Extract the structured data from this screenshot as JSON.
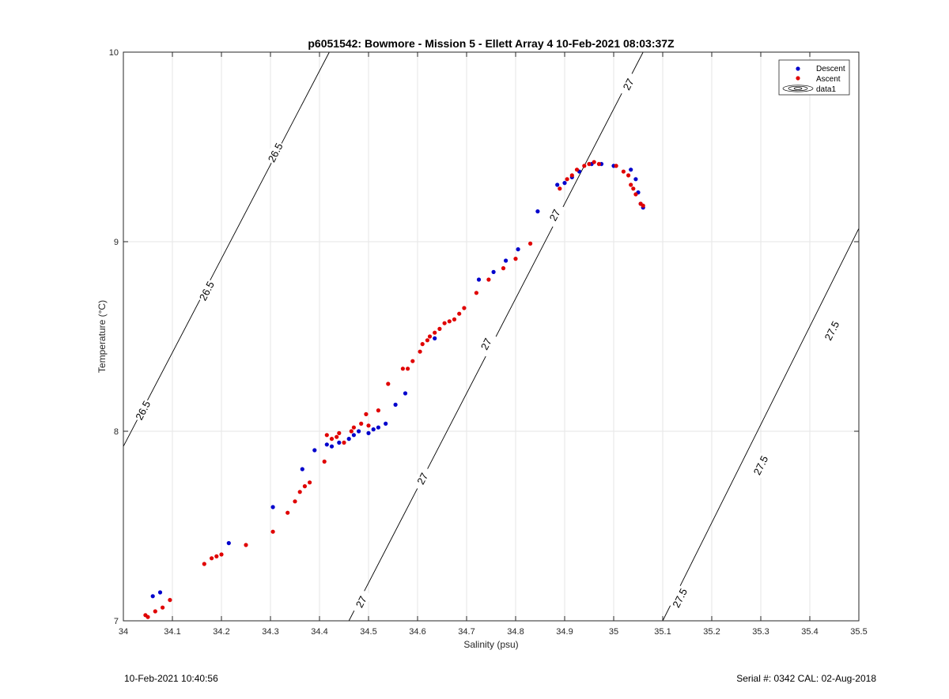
{
  "footer": {
    "timestamp": "10-Feb-2021 10:40:56",
    "serial": "Serial #: 0342  CAL: 02-Aug-2018"
  },
  "chart_data": {
    "type": "scatter",
    "title": "p6051542: Bowmore - Mission 5 - Ellett Array 4 10-Feb-2021 08:03:37Z",
    "xlabel": "Salinity (psu)",
    "ylabel": "Temperature (°C)",
    "xlim": [
      34,
      35.5
    ],
    "ylim": [
      7,
      10
    ],
    "xticks": [
      "34",
      "34.1",
      "34.2",
      "34.3",
      "34.4",
      "34.5",
      "34.6",
      "34.7",
      "34.8",
      "34.9",
      "35",
      "35.1",
      "35.2",
      "35.3",
      "35.4",
      "35.5"
    ],
    "yticks": [
      "7",
      "8",
      "9",
      "10"
    ],
    "grid": true,
    "legend_position": "top-right",
    "legend": [
      "Descent",
      "Ascent",
      "data1"
    ],
    "colors": {
      "Descent": "#0000cc",
      "Ascent": "#e00000",
      "contour": "#000000",
      "grid": "#e6e6e6"
    },
    "contours": [
      {
        "level": "26.5",
        "points": [
          [
            34.0,
            7.92
          ],
          [
            34.42,
            10.0
          ]
        ],
        "labels": [
          [
            34.04,
            8.11
          ],
          [
            34.17,
            8.74
          ],
          [
            34.31,
            9.47
          ]
        ]
      },
      {
        "level": "27",
        "points": [
          [
            34.46,
            7.0
          ],
          [
            35.06,
            10.0
          ]
        ],
        "labels": [
          [
            34.485,
            7.1
          ],
          [
            34.61,
            7.75
          ],
          [
            34.74,
            8.46
          ],
          [
            34.88,
            9.14
          ],
          [
            35.03,
            9.83
          ]
        ]
      },
      {
        "level": "27.5",
        "points": [
          [
            35.1,
            7.0
          ],
          [
            35.5,
            9.07
          ]
        ],
        "labels": [
          [
            35.135,
            7.12
          ],
          [
            35.3,
            7.82
          ],
          [
            35.445,
            8.53
          ]
        ]
      }
    ],
    "series": [
      {
        "name": "Descent",
        "points": [
          [
            34.06,
            7.13
          ],
          [
            34.075,
            7.15
          ],
          [
            34.215,
            7.41
          ],
          [
            34.305,
            7.6
          ],
          [
            34.365,
            7.8
          ],
          [
            34.39,
            7.9
          ],
          [
            34.415,
            7.93
          ],
          [
            34.425,
            7.92
          ],
          [
            34.44,
            7.94
          ],
          [
            34.46,
            7.96
          ],
          [
            34.47,
            7.98
          ],
          [
            34.48,
            8.0
          ],
          [
            34.5,
            7.99
          ],
          [
            34.51,
            8.01
          ],
          [
            34.52,
            8.02
          ],
          [
            34.535,
            8.04
          ],
          [
            34.555,
            8.14
          ],
          [
            34.575,
            8.2
          ],
          [
            34.635,
            8.49
          ],
          [
            34.725,
            8.8
          ],
          [
            34.755,
            8.84
          ],
          [
            34.78,
            8.9
          ],
          [
            34.805,
            8.96
          ],
          [
            34.845,
            9.16
          ],
          [
            34.885,
            9.3
          ],
          [
            34.9,
            9.31
          ],
          [
            34.915,
            9.34
          ],
          [
            34.93,
            9.37
          ],
          [
            34.955,
            9.41
          ],
          [
            34.975,
            9.41
          ],
          [
            35.0,
            9.4
          ],
          [
            35.035,
            9.38
          ],
          [
            35.045,
            9.33
          ],
          [
            35.05,
            9.26
          ],
          [
            35.06,
            9.18
          ],
          [
            35.055,
            9.2
          ]
        ]
      },
      {
        "name": "Ascent",
        "points": [
          [
            34.045,
            7.03
          ],
          [
            34.05,
            7.02
          ],
          [
            34.065,
            7.05
          ],
          [
            34.08,
            7.07
          ],
          [
            34.095,
            7.11
          ],
          [
            34.165,
            7.3
          ],
          [
            34.18,
            7.33
          ],
          [
            34.19,
            7.34
          ],
          [
            34.2,
            7.35
          ],
          [
            34.25,
            7.4
          ],
          [
            34.305,
            7.47
          ],
          [
            34.335,
            7.57
          ],
          [
            34.35,
            7.63
          ],
          [
            34.36,
            7.68
          ],
          [
            34.37,
            7.71
          ],
          [
            34.38,
            7.73
          ],
          [
            34.41,
            7.84
          ],
          [
            34.415,
            7.98
          ],
          [
            34.425,
            7.96
          ],
          [
            34.435,
            7.97
          ],
          [
            34.44,
            7.99
          ],
          [
            34.45,
            7.94
          ],
          [
            34.465,
            8.0
          ],
          [
            34.47,
            8.02
          ],
          [
            34.485,
            8.04
          ],
          [
            34.495,
            8.09
          ],
          [
            34.5,
            8.03
          ],
          [
            34.52,
            8.11
          ],
          [
            34.54,
            8.25
          ],
          [
            34.57,
            8.33
          ],
          [
            34.58,
            8.33
          ],
          [
            34.59,
            8.37
          ],
          [
            34.605,
            8.42
          ],
          [
            34.61,
            8.46
          ],
          [
            34.62,
            8.48
          ],
          [
            34.625,
            8.5
          ],
          [
            34.635,
            8.52
          ],
          [
            34.645,
            8.54
          ],
          [
            34.655,
            8.57
          ],
          [
            34.665,
            8.58
          ],
          [
            34.675,
            8.59
          ],
          [
            34.685,
            8.62
          ],
          [
            34.695,
            8.65
          ],
          [
            34.72,
            8.73
          ],
          [
            34.745,
            8.8
          ],
          [
            34.775,
            8.86
          ],
          [
            34.8,
            8.91
          ],
          [
            34.83,
            8.99
          ],
          [
            34.89,
            9.28
          ],
          [
            34.905,
            9.33
          ],
          [
            34.915,
            9.35
          ],
          [
            34.925,
            9.38
          ],
          [
            34.94,
            9.4
          ],
          [
            34.95,
            9.41
          ],
          [
            34.96,
            9.42
          ],
          [
            34.97,
            9.41
          ],
          [
            35.005,
            9.4
          ],
          [
            35.02,
            9.37
          ],
          [
            35.03,
            9.35
          ],
          [
            35.035,
            9.3
          ],
          [
            35.04,
            9.28
          ],
          [
            35.045,
            9.25
          ],
          [
            35.055,
            9.2
          ],
          [
            35.06,
            9.19
          ]
        ]
      }
    ]
  }
}
